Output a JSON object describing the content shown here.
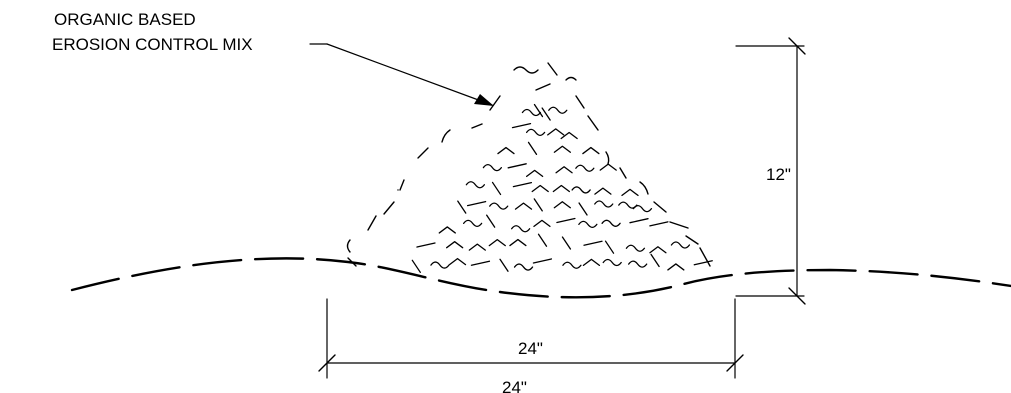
{
  "callout": {
    "line1": "ORGANIC BASED",
    "line2": "EROSION CONTROL MIX"
  },
  "dimensions": {
    "height_label": "12\"",
    "width_label": "24\"",
    "width_label_repeat": "24\""
  },
  "colors": {
    "ink": "#000000",
    "background": "#ffffff"
  }
}
